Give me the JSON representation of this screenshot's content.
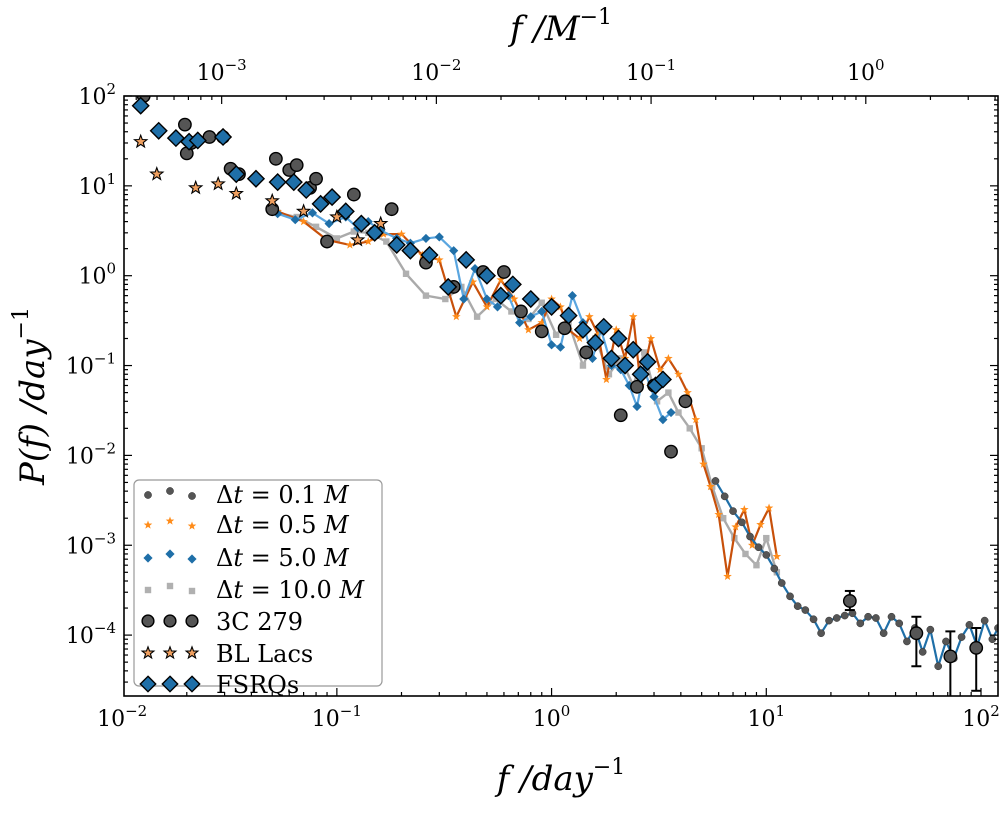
{
  "chart_data": {
    "type": "scatter",
    "title": "",
    "xlabel": "f /day",
    "xlabel_exp": "−1",
    "ylabel": "P(f) /day",
    "ylabel_exp": "−1",
    "top_xlabel": "f /M",
    "top_xlabel_exp": "−1",
    "xscale": "log",
    "yscale": "log",
    "xlim": [
      0.0102,
      120
    ],
    "ylim": [
      2.1e-05,
      100
    ],
    "x_ticks": [
      {
        "value": 0.01,
        "base": "10",
        "exp": "−2"
      },
      {
        "value": 0.1,
        "base": "10",
        "exp": "−1"
      },
      {
        "value": 1,
        "base": "10",
        "exp": "0"
      },
      {
        "value": 10,
        "base": "10",
        "exp": "1"
      },
      {
        "value": 100,
        "base": "10",
        "exp": "2"
      }
    ],
    "y_ticks": [
      {
        "value": 0.0001,
        "base": "10",
        "exp": "−4"
      },
      {
        "value": 0.001,
        "base": "10",
        "exp": "−3"
      },
      {
        "value": 0.01,
        "base": "10",
        "exp": "−2"
      },
      {
        "value": 0.1,
        "base": "10",
        "exp": "−1"
      },
      {
        "value": 1,
        "base": "10",
        "exp": "0"
      },
      {
        "value": 10,
        "base": "10",
        "exp": "1"
      },
      {
        "value": 100,
        "base": "10",
        "exp": "2"
      }
    ],
    "top_axis_scale": 0.0344,
    "top_ticks": [
      {
        "value": 0.001,
        "base": "10",
        "exp": "−3"
      },
      {
        "value": 0.01,
        "base": "10",
        "exp": "−2"
      },
      {
        "value": 0.1,
        "base": "10",
        "exp": "−1"
      },
      {
        "value": 1,
        "base": "10",
        "exp": "0"
      }
    ],
    "legend_position": "lower-left",
    "series": [
      {
        "name": "Δt = 0.1 M",
        "label_pre": "Δ",
        "label_var": "t",
        "label_mid": " = 0.1 ",
        "label_unit": "M",
        "kind": "line",
        "marker": "circle",
        "color": "#555555",
        "line_color": "#1f6fa8",
        "x": [
          5.8,
          6.4,
          7.0,
          7.7,
          8.4,
          9.2,
          10.0,
          10.9,
          11.8,
          12.9,
          14.0,
          15.2,
          16.6,
          18.0,
          19.6,
          21.3,
          23.2,
          25.2,
          27.4,
          29.8,
          32.4,
          35.2,
          38.3,
          41.6,
          45.2,
          49.2,
          53.5,
          58.1,
          63.2,
          68.7,
          74.7,
          81.2,
          88.3,
          96.0,
          104,
          113,
          120
        ],
        "y": [
          0.0052,
          0.0035,
          0.0024,
          0.0018,
          0.00125,
          0.00095,
          0.00078,
          0.00055,
          0.00038,
          0.00027,
          0.00021,
          0.00019,
          0.00015,
          0.000105,
          0.000145,
          0.000155,
          0.000165,
          0.000175,
          0.000135,
          0.00016,
          0.000155,
          0.000105,
          0.00016,
          0.000135,
          8.5e-05,
          0.00012,
          6.5e-05,
          0.000115,
          4.5e-05,
          8.5e-05,
          5.5e-05,
          9.5e-05,
          0.00013,
          7.5e-05,
          0.000145,
          9e-05,
          0.00012
        ]
      },
      {
        "name": "Δt = 0.5 M",
        "label_pre": "Δ",
        "label_var": "t",
        "label_mid": " = 0.5 ",
        "label_unit": "M",
        "kind": "line",
        "marker": "star",
        "color": "#ff8c1a",
        "line_color": "#c8500a",
        "x": [
          0.053,
          0.07,
          0.09,
          0.115,
          0.14,
          0.165,
          0.2,
          0.25,
          0.3,
          0.36,
          0.43,
          0.5,
          0.58,
          0.67,
          0.78,
          0.9,
          1.0,
          1.1,
          1.2,
          1.35,
          1.5,
          1.65,
          1.8,
          2.0,
          2.2,
          2.4,
          2.6,
          2.9,
          3.2,
          3.5,
          3.9,
          4.3,
          4.7,
          5.1,
          5.5,
          6.0,
          6.6,
          7.2,
          7.9,
          8.6,
          9.4,
          10.3,
          11.2
        ],
        "y": [
          5.2,
          4.0,
          2.5,
          2.2,
          2.4,
          2.9,
          2.9,
          1.7,
          1.5,
          0.35,
          0.85,
          0.45,
          0.9,
          0.55,
          0.25,
          0.3,
          0.55,
          0.45,
          0.25,
          0.2,
          0.35,
          0.22,
          0.07,
          0.25,
          0.12,
          0.35,
          0.06,
          0.2,
          0.09,
          0.12,
          0.08,
          0.05,
          0.025,
          0.008,
          0.0045,
          0.0022,
          0.00045,
          0.0016,
          0.0025,
          0.001,
          0.0017,
          0.0026,
          0.00075
        ]
      },
      {
        "name": "Δt = 5.0 M",
        "label_pre": "Δ",
        "label_var": "t",
        "label_mid": " = 5.0 ",
        "label_unit": "M",
        "kind": "line",
        "marker": "diamond",
        "color": "#1f6fa8",
        "line_color": "#5aa6e0",
        "x": [
          0.053,
          0.064,
          0.077,
          0.092,
          0.11,
          0.125,
          0.14,
          0.16,
          0.19,
          0.22,
          0.26,
          0.3,
          0.35,
          0.39,
          0.44,
          0.5,
          0.56,
          0.63,
          0.71,
          0.8,
          0.9,
          1.0,
          1.1,
          1.25,
          1.4,
          1.55,
          1.7,
          1.9,
          2.1,
          2.3,
          2.5,
          2.7,
          3.0,
          3.3,
          3.6
        ],
        "y": [
          4.9,
          4.2,
          5.0,
          3.8,
          4.5,
          3.4,
          4.0,
          3.2,
          2.6,
          2.3,
          2.6,
          2.7,
          1.9,
          0.55,
          1.2,
          0.55,
          0.45,
          0.6,
          0.3,
          0.35,
          0.4,
          0.17,
          0.16,
          0.6,
          0.3,
          0.12,
          0.25,
          0.1,
          0.09,
          0.06,
          0.035,
          0.09,
          0.045,
          0.025,
          0.03
        ]
      },
      {
        "name": "Δt = 10.0 M",
        "label_pre": "Δ",
        "label_var": "t",
        "label_mid": " = 10.0 ",
        "label_unit": "M",
        "kind": "line",
        "marker": "square",
        "color": "#b0b0b0",
        "line_color": "#aaaaaa",
        "x": [
          0.053,
          0.065,
          0.08,
          0.1,
          0.12,
          0.14,
          0.17,
          0.21,
          0.26,
          0.32,
          0.38,
          0.45,
          0.55,
          0.65,
          0.78,
          0.9,
          1.05,
          1.2,
          1.4,
          1.6,
          1.85,
          2.1,
          2.4,
          2.7,
          3.1,
          3.5,
          3.9,
          4.4,
          5.0,
          5.6,
          6.3,
          7.1,
          8.0,
          9.0,
          10.0,
          11.2
        ],
        "y": [
          5.0,
          4.5,
          3.5,
          2.6,
          3.1,
          3.0,
          2.4,
          1.05,
          0.6,
          0.55,
          0.75,
          0.35,
          0.55,
          0.4,
          0.33,
          0.5,
          0.22,
          0.3,
          0.1,
          0.2,
          0.08,
          0.12,
          0.06,
          0.14,
          0.04,
          0.05,
          0.03,
          0.02,
          0.012,
          0.0045,
          0.002,
          0.0012,
          0.0008,
          0.0006,
          0.0012,
          0.0005
        ]
      },
      {
        "name": "3C 279",
        "label_pre": "3C 279",
        "kind": "points",
        "marker": "circle",
        "color": "#555555",
        "line_color": "#000000",
        "x": [
          0.0126,
          0.0196,
          0.02,
          0.021,
          0.0255,
          0.0295,
          0.032,
          0.035,
          0.05,
          0.052,
          0.06,
          0.065,
          0.075,
          0.08,
          0.09,
          0.12,
          0.15,
          0.18,
          0.26,
          0.35,
          0.48,
          0.6,
          0.72,
          0.9,
          1.15,
          1.45,
          2.1,
          2.5,
          3.0,
          3.6,
          4.2,
          24.5,
          50,
          72,
          95
        ],
        "y": [
          100,
          48,
          23,
          30,
          35,
          35,
          15.5,
          13.5,
          5.5,
          20,
          15,
          17,
          9.5,
          12,
          2.4,
          8,
          3,
          5.5,
          1.4,
          0.75,
          1.1,
          1.1,
          0.4,
          0.24,
          0.26,
          0.14,
          0.028,
          0.058,
          0.06,
          0.011,
          0.04,
          0.00024,
          0.000105,
          5.8e-05,
          7.2e-05
        ],
        "errors": [
          null,
          null,
          null,
          null,
          null,
          null,
          null,
          null,
          null,
          null,
          null,
          null,
          null,
          null,
          null,
          null,
          null,
          null,
          null,
          null,
          null,
          null,
          null,
          null,
          null,
          null,
          null,
          null,
          null,
          null,
          null,
          [
            0.00019,
            0.00031
          ],
          [
            4.5e-05,
            0.00016
          ],
          [
            2e-05,
            0.00011
          ],
          [
            2.4e-05,
            0.00012
          ]
        ]
      },
      {
        "name": "BL Lacs",
        "label_pre": "BL Lacs",
        "kind": "points",
        "marker": "star",
        "color": "#f0a060",
        "line_color": "#000000",
        "x": [
          0.0122,
          0.0145,
          0.022,
          0.028,
          0.034,
          0.05,
          0.07,
          0.1,
          0.125,
          0.16
        ],
        "y": [
          31,
          13.5,
          9.5,
          10.5,
          8.2,
          6.8,
          5.2,
          4.5,
          2.5,
          3.8
        ]
      },
      {
        "name": "FSRQs",
        "label_pre": "FSRQs",
        "kind": "points",
        "marker": "diamond",
        "color": "#1f6fa8",
        "line_color": "#000000",
        "x": [
          0.0122,
          0.0148,
          0.0178,
          0.0205,
          0.0225,
          0.0295,
          0.034,
          0.042,
          0.053,
          0.063,
          0.072,
          0.084,
          0.095,
          0.11,
          0.13,
          0.15,
          0.19,
          0.22,
          0.27,
          0.33,
          0.4,
          0.5,
          0.58,
          0.66,
          0.8,
          1.0,
          1.2,
          1.4,
          1.6,
          1.75,
          1.9,
          2.05,
          2.2,
          2.4,
          2.6,
          2.8,
          3.05,
          3.3
        ],
        "y": [
          78,
          41,
          34,
          31,
          32,
          35,
          13.5,
          12,
          11,
          11,
          9,
          6.3,
          7.5,
          5.2,
          3.8,
          3.0,
          2.2,
          1.9,
          1.7,
          0.75,
          1.5,
          1.0,
          0.6,
          0.8,
          0.55,
          0.45,
          0.36,
          0.25,
          0.18,
          0.27,
          0.12,
          0.2,
          0.1,
          0.15,
          0.08,
          0.11,
          0.06,
          0.07
        ]
      }
    ]
  }
}
